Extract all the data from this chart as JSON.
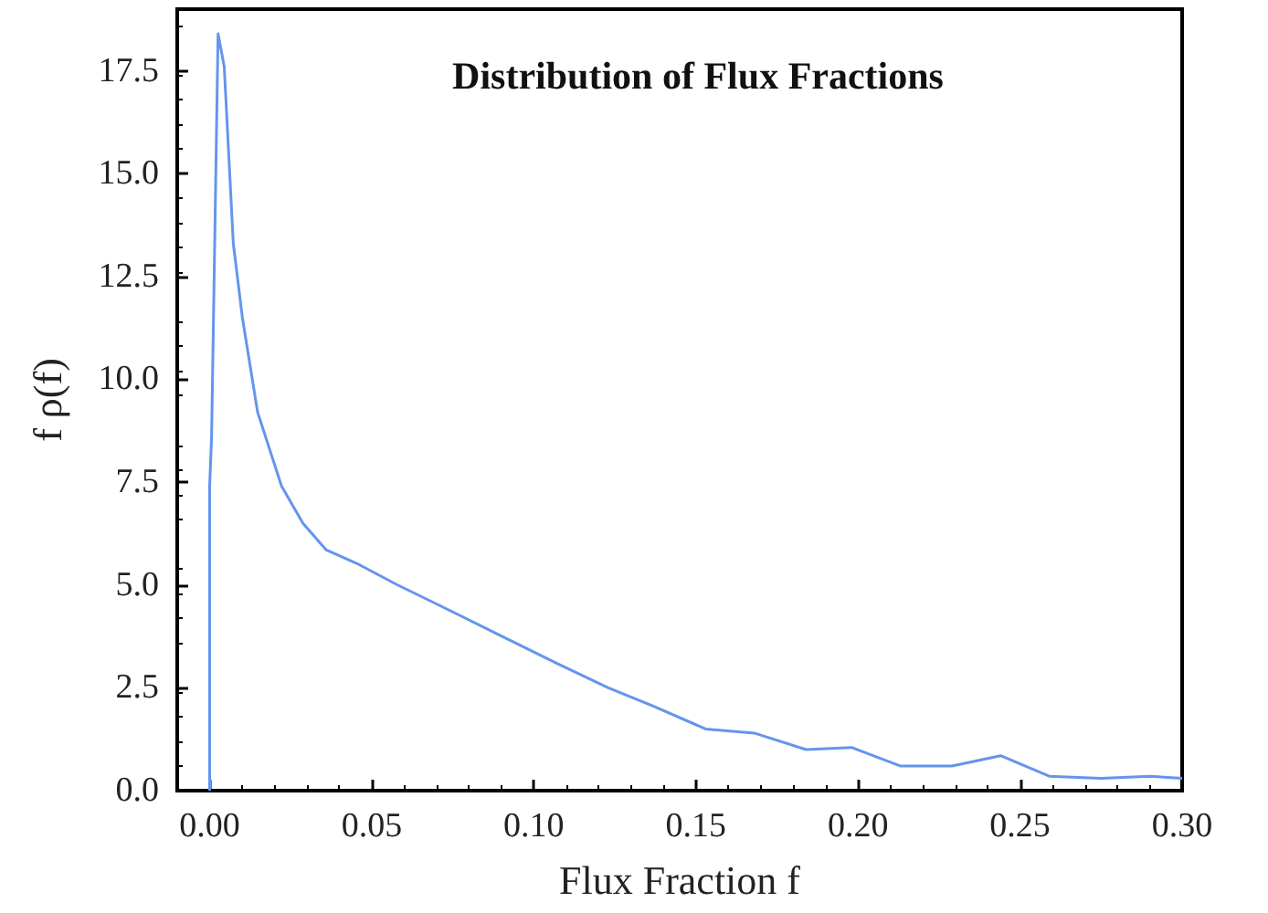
{
  "chart_data": {
    "type": "line",
    "title": "Distribution of Flux Fractions",
    "xlabel": "Flux Fraction f",
    "ylabel": "f ρ(f)",
    "x": [
      0,
      0,
      0,
      0.0006,
      0.0026,
      0.0045,
      0.0073,
      0.0101,
      0.0148,
      0.0222,
      0.0288,
      0.036,
      0.046,
      0.058,
      0.071,
      0.089,
      0.107,
      0.123,
      0.137,
      0.153,
      0.168,
      0.184,
      0.198,
      0.213,
      0.229,
      0.244,
      0.259,
      0.275,
      0.29,
      0.3
    ],
    "series": [
      {
        "color": "#6495ed",
        "values": [
          0,
          4.9,
          7.4,
          8.6,
          18.4,
          17.6,
          13.3,
          11.5,
          9.2,
          7.4,
          6.5,
          5.85,
          5.5,
          5.0,
          4.5,
          3.8,
          3.1,
          2.5,
          2.05,
          1.5,
          1.4,
          1.0,
          1.05,
          0.6,
          0.6,
          0.85,
          0.35,
          0.3,
          0.35,
          0.3
        ]
      }
    ],
    "xlim": [
      -0.01,
      0.3
    ],
    "ylim": [
      0,
      19
    ],
    "xticks": [
      {
        "value": 0,
        "label": "0.00"
      },
      {
        "value": 0.05,
        "label": "0.05"
      },
      {
        "value": 0.1,
        "label": "0.10"
      },
      {
        "value": 0.15,
        "label": "0.15"
      },
      {
        "value": 0.2,
        "label": "0.20"
      },
      {
        "value": 0.25,
        "label": "0.25"
      },
      {
        "value": 0.3,
        "label": "0.30"
      }
    ],
    "yticks": [
      {
        "value": 0,
        "label": "0.0"
      },
      {
        "value": 2.5,
        "label": "2.5"
      },
      {
        "value": 5,
        "label": "5.0"
      },
      {
        "value": 7.5,
        "label": "7.5"
      },
      {
        "value": 10,
        "label": "10.0"
      },
      {
        "value": 12.5,
        "label": "12.5"
      },
      {
        "value": 15,
        "label": "15.0"
      },
      {
        "value": 17.5,
        "label": "17.5"
      }
    ],
    "grid": false,
    "marker": "none",
    "line_style": "solid"
  }
}
